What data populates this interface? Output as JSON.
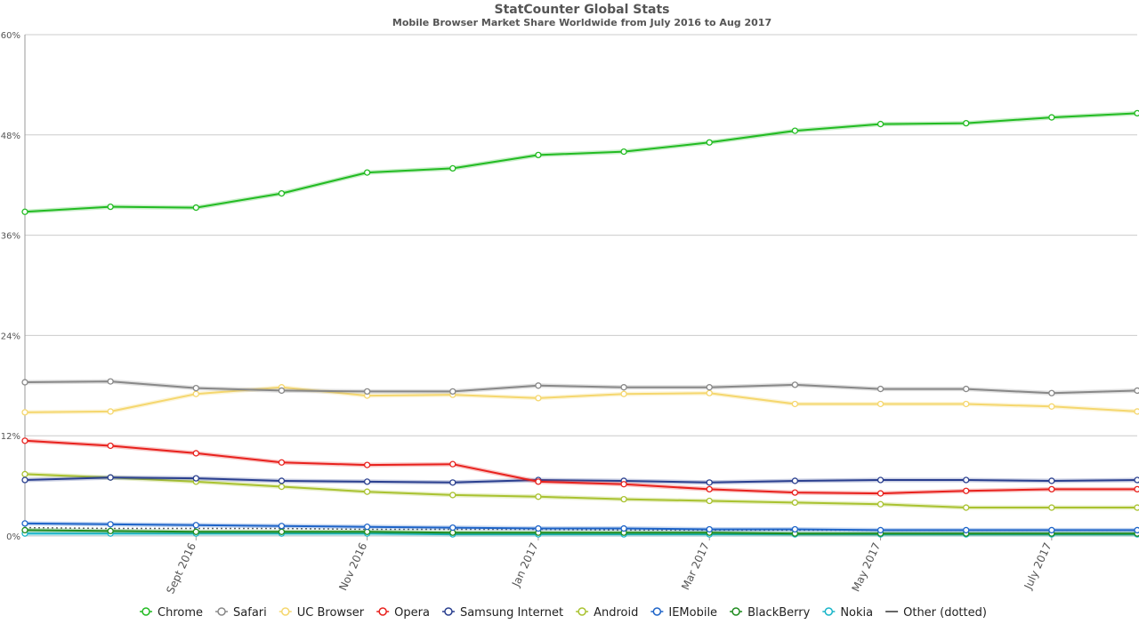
{
  "chart_data": {
    "type": "line",
    "title": "StatCounter Global Stats",
    "subtitle": "Mobile Browser Market Share Worldwide from July 2016 to Aug 2017",
    "ylim": [
      0,
      60
    ],
    "yticks": [
      "0%",
      "12%",
      "24%",
      "36%",
      "48%",
      "60%"
    ],
    "ytick_values": [
      0,
      12,
      24,
      36,
      48,
      60
    ],
    "x": [
      "2016-07",
      "2016-08",
      "2016-09",
      "2016-10",
      "2016-11",
      "2016-12",
      "2017-01",
      "2017-02",
      "2017-03",
      "2017-04",
      "2017-05",
      "2017-06",
      "2017-07",
      "2017-08"
    ],
    "xtick_labels": [
      {
        "index": 2,
        "label": "Sept 2016"
      },
      {
        "index": 4,
        "label": "Nov 2016"
      },
      {
        "index": 6,
        "label": "Jan 2017"
      },
      {
        "index": 8,
        "label": "Mar 2017"
      },
      {
        "index": 10,
        "label": "May 2017"
      },
      {
        "index": 12,
        "label": "July 2017"
      }
    ],
    "grid": true,
    "legend_position": "bottom",
    "series": [
      {
        "name": "Chrome",
        "color": "#22bb22",
        "values": [
          38.8,
          39.4,
          39.3,
          41.0,
          43.5,
          44.0,
          45.6,
          46.0,
          47.1,
          48.5,
          49.3,
          49.4,
          50.1,
          50.6
        ]
      },
      {
        "name": "Safari",
        "color": "#888888",
        "values": [
          18.4,
          18.5,
          17.7,
          17.4,
          17.3,
          17.3,
          18.0,
          17.8,
          17.8,
          18.1,
          17.6,
          17.6,
          17.1,
          17.4
        ]
      },
      {
        "name": "UC Browser",
        "color": "#f5d76e",
        "values": [
          14.8,
          14.9,
          17.0,
          17.8,
          16.8,
          16.9,
          16.5,
          17.0,
          17.1,
          15.8,
          15.8,
          15.8,
          15.5,
          14.9
        ]
      },
      {
        "name": "Opera",
        "color": "#e8211d",
        "values": [
          11.4,
          10.8,
          9.9,
          8.8,
          8.5,
          8.6,
          6.5,
          6.2,
          5.6,
          5.2,
          5.1,
          5.4,
          5.6,
          5.6
        ]
      },
      {
        "name": "Samsung Internet",
        "color": "#2a3f8f",
        "values": [
          6.7,
          7.0,
          6.9,
          6.6,
          6.5,
          6.4,
          6.7,
          6.6,
          6.4,
          6.6,
          6.7,
          6.7,
          6.6,
          6.7
        ]
      },
      {
        "name": "Android",
        "color": "#a9c230",
        "values": [
          7.4,
          7.0,
          6.5,
          5.9,
          5.3,
          4.9,
          4.7,
          4.4,
          4.2,
          4.0,
          3.8,
          3.4,
          3.4,
          3.4
        ]
      },
      {
        "name": "IEMobile",
        "color": "#1e64c8",
        "values": [
          1.5,
          1.4,
          1.3,
          1.2,
          1.1,
          1.0,
          0.9,
          0.9,
          0.8,
          0.8,
          0.7,
          0.7,
          0.7,
          0.7
        ]
      },
      {
        "name": "BlackBerry",
        "color": "#1f8c1f",
        "values": [
          0.7,
          0.6,
          0.5,
          0.5,
          0.5,
          0.4,
          0.4,
          0.4,
          0.4,
          0.3,
          0.3,
          0.3,
          0.3,
          0.3
        ]
      },
      {
        "name": "Nokia",
        "color": "#19b5c9",
        "values": [
          0.3,
          0.3,
          0.3,
          0.3,
          0.3,
          0.2,
          0.2,
          0.2,
          0.2,
          0.2,
          0.2,
          0.2,
          0.2,
          0.2
        ]
      },
      {
        "name": "Other (dotted)",
        "color": "#666666",
        "dotted": true,
        "values": [
          1.0,
          0.9,
          0.9,
          0.9,
          0.8,
          0.8,
          0.8,
          0.7,
          0.7,
          0.7,
          0.7,
          0.7,
          0.7,
          0.7
        ]
      }
    ]
  }
}
